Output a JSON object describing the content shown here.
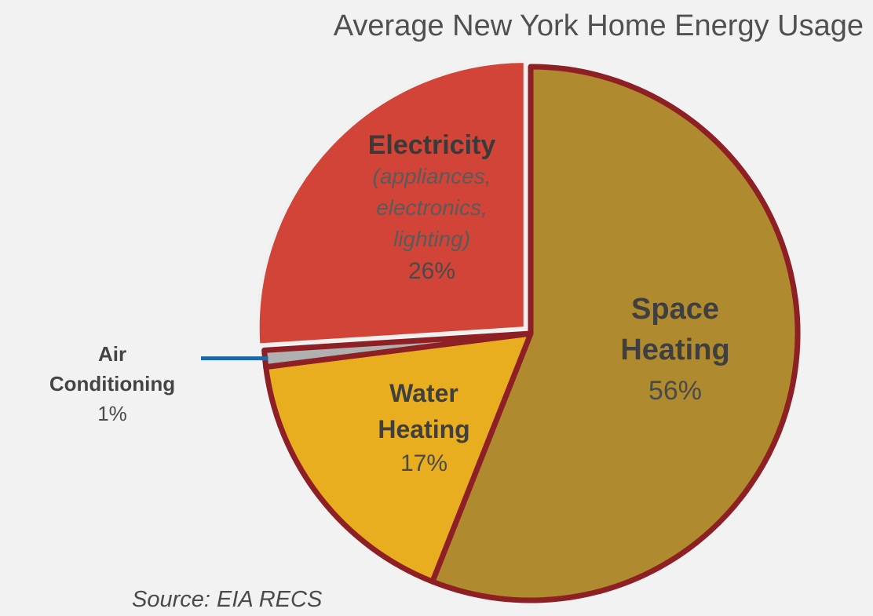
{
  "chart_data": {
    "type": "pie",
    "title": "Average New York Home Energy Usage",
    "source": "Source: EIA RECS",
    "slices": [
      {
        "key": "space",
        "name_lines": [
          "Space",
          "Heating"
        ],
        "value": 56,
        "pct_label": "56%",
        "color": "#b08a2e"
      },
      {
        "key": "water",
        "name_lines": [
          "Water",
          "Heating"
        ],
        "value": 17,
        "pct_label": "17%",
        "color": "#e8ae20"
      },
      {
        "key": "ac",
        "name_lines": [
          "Air",
          "Conditioning"
        ],
        "value": 1,
        "pct_label": "1%",
        "color": "#b0b0b0"
      },
      {
        "key": "electricity",
        "name_lines": [
          "Electricity"
        ],
        "note_lines": [
          "(appliances,",
          "electronics,",
          "lighting)"
        ],
        "value": 26,
        "pct_label": "26%",
        "color": "#d24437"
      }
    ],
    "border_color": "#8e1f24",
    "leader_line_color": "#1f6aa5"
  }
}
